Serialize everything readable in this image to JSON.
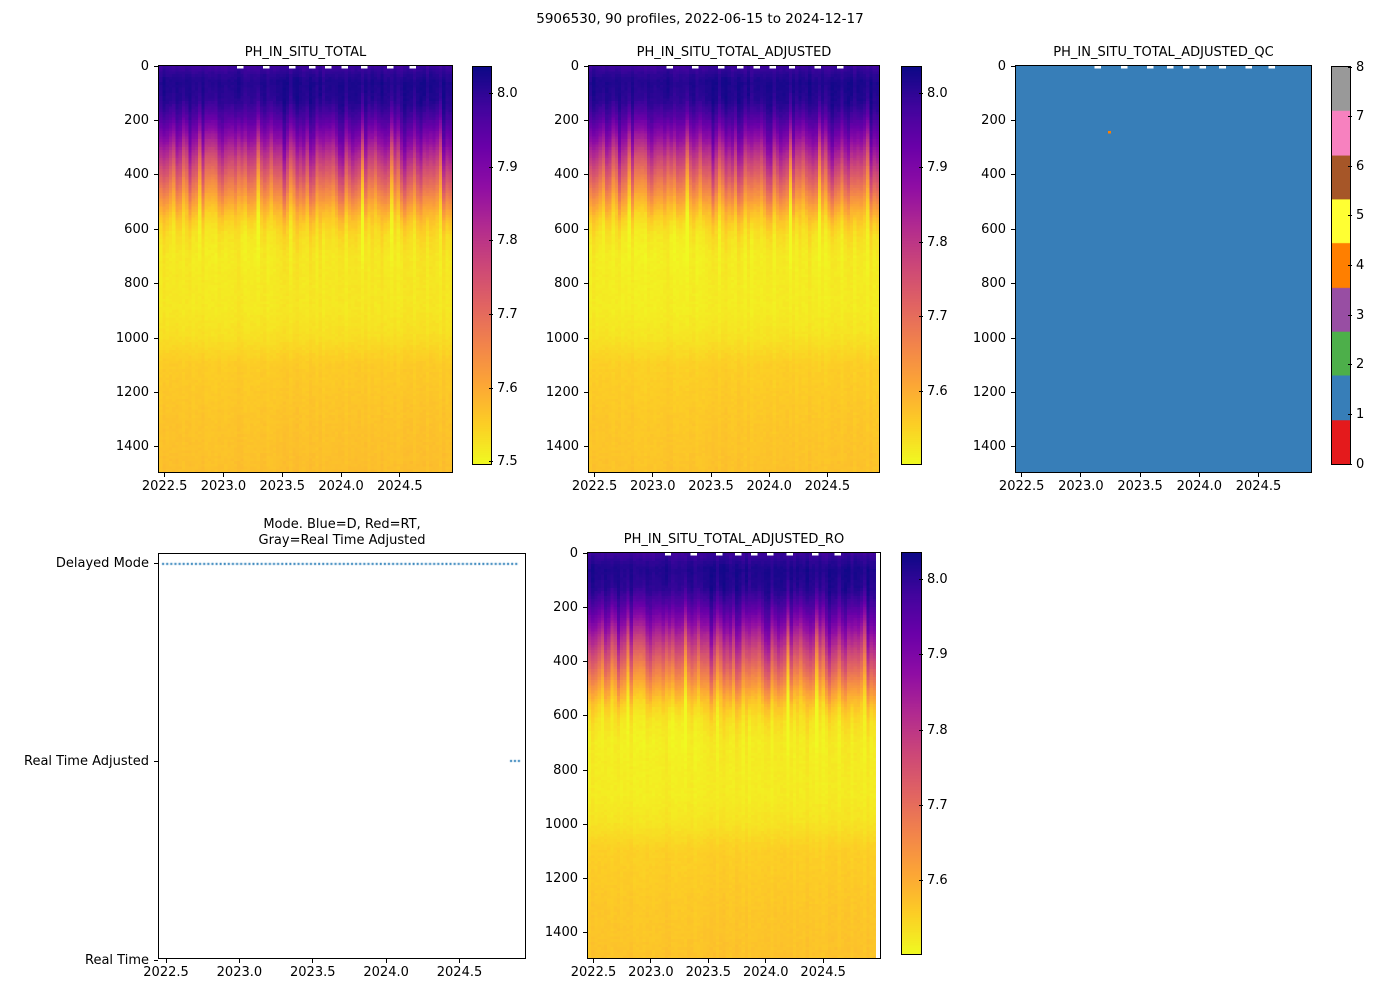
{
  "figure": {
    "title": "5906530, 90 profiles, 2022-06-15 to 2024-12-17"
  },
  "colors": {
    "marker_blue": "#1f77b4",
    "qc_fill_blue": "#377eb8",
    "qc_anomaly_orange": "#ff7f00",
    "axis_black": "#000000",
    "background": "#ffffff",
    "plasma_stops": [
      "#0d0887",
      "#41049d",
      "#6a00a8",
      "#8f0da4",
      "#b12a90",
      "#cc4778",
      "#e16462",
      "#f2844b",
      "#fca636",
      "#fcce25",
      "#f0f921"
    ],
    "qc_palette_set1": [
      "#e41a1c",
      "#377eb8",
      "#4daf4a",
      "#984ea3",
      "#ff7f00",
      "#ffff33",
      "#a65628",
      "#f781bf",
      "#999999"
    ]
  },
  "chart_data": [
    {
      "id": "ph_total",
      "type": "heatmap",
      "title": "PH_IN_SITU_TOTAL",
      "x_range": [
        2022.452,
        2024.96
      ],
      "x_ticks": [
        "2022.5",
        "2023.0",
        "2023.5",
        "2024.0",
        "2024.5"
      ],
      "x_tick_values": [
        2022.5,
        2023.0,
        2023.5,
        2024.0,
        2024.5
      ],
      "depth_range": [
        0,
        1500
      ],
      "y_ticks": [
        "0",
        "200",
        "400",
        "600",
        "800",
        "1000",
        "1200",
        "1400"
      ],
      "y_tick_values": [
        0,
        200,
        400,
        600,
        800,
        1000,
        1200,
        1400
      ],
      "n_profiles": 90,
      "vmin": 7.497,
      "vmax": 8.036,
      "colorbar_ticks": [
        "8.0",
        "7.9",
        "7.8",
        "7.7",
        "7.6",
        "7.5"
      ],
      "colorbar_tick_values": [
        8.0,
        7.9,
        7.8,
        7.7,
        7.6,
        7.5
      ],
      "ph_vs_depth": [
        [
          0,
          7.985
        ],
        [
          30,
          8.005
        ],
        [
          60,
          8.02
        ],
        [
          130,
          8.01
        ],
        [
          180,
          7.975
        ],
        [
          240,
          7.915
        ],
        [
          300,
          7.845
        ],
        [
          360,
          7.775
        ],
        [
          430,
          7.7
        ],
        [
          500,
          7.625
        ],
        [
          560,
          7.565
        ],
        [
          620,
          7.535
        ],
        [
          700,
          7.52
        ],
        [
          900,
          7.52
        ],
        [
          1000,
          7.53
        ],
        [
          1100,
          7.555
        ],
        [
          1300,
          7.565
        ],
        [
          1500,
          7.572
        ]
      ],
      "spike_columns": [
        [
          0.05,
          0.06
        ],
        [
          0.135,
          0.07
        ],
        [
          0.28,
          0.09
        ],
        [
          0.34,
          0.06
        ],
        [
          0.45,
          0.05
        ],
        [
          0.7,
          0.12
        ],
        [
          0.8,
          0.07
        ],
        [
          0.86,
          0.06
        ]
      ],
      "top_gap_fractions": [
        0.27,
        0.36,
        0.45,
        0.52,
        0.57,
        0.63,
        0.7,
        0.79,
        0.87
      ]
    },
    {
      "id": "ph_adjusted",
      "type": "heatmap",
      "title": "PH_IN_SITU_TOTAL_ADJUSTED",
      "x_range": [
        2022.452,
        2024.96
      ],
      "x_ticks": [
        "2022.5",
        "2023.0",
        "2023.5",
        "2024.0",
        "2024.5"
      ],
      "x_tick_values": [
        2022.5,
        2023.0,
        2023.5,
        2024.0,
        2024.5
      ],
      "depth_range": [
        0,
        1500
      ],
      "y_ticks": [
        "0",
        "200",
        "400",
        "600",
        "800",
        "1000",
        "1200",
        "1400"
      ],
      "y_tick_values": [
        0,
        200,
        400,
        600,
        800,
        1000,
        1200,
        1400
      ],
      "n_profiles": 90,
      "vmin": 7.503,
      "vmax": 8.035,
      "colorbar_ticks": [
        "8.0",
        "7.9",
        "7.8",
        "7.7",
        "7.6"
      ],
      "colorbar_tick_values": [
        8.0,
        7.9,
        7.8,
        7.7,
        7.6
      ],
      "ph_vs_depth": [
        [
          0,
          7.985
        ],
        [
          30,
          8.005
        ],
        [
          60,
          8.02
        ],
        [
          130,
          8.01
        ],
        [
          180,
          7.975
        ],
        [
          240,
          7.915
        ],
        [
          300,
          7.845
        ],
        [
          360,
          7.775
        ],
        [
          430,
          7.7
        ],
        [
          500,
          7.625
        ],
        [
          560,
          7.565
        ],
        [
          620,
          7.535
        ],
        [
          700,
          7.52
        ],
        [
          900,
          7.52
        ],
        [
          1000,
          7.53
        ],
        [
          1100,
          7.555
        ],
        [
          1300,
          7.565
        ],
        [
          1500,
          7.572
        ]
      ],
      "spike_columns": [
        [
          0.05,
          0.06
        ],
        [
          0.135,
          0.07
        ],
        [
          0.28,
          0.09
        ],
        [
          0.34,
          0.06
        ],
        [
          0.45,
          0.05
        ],
        [
          0.7,
          0.12
        ],
        [
          0.8,
          0.07
        ],
        [
          0.86,
          0.06
        ]
      ],
      "top_gap_fractions": [
        0.27,
        0.36,
        0.45,
        0.52,
        0.57,
        0.63,
        0.7,
        0.79,
        0.87
      ]
    },
    {
      "id": "ph_adjusted_qc",
      "type": "heatmap-categorical",
      "title": "PH_IN_SITU_TOTAL_ADJUSTED_QC",
      "x_range": [
        2022.452,
        2024.96
      ],
      "x_ticks": [
        "2022.5",
        "2023.0",
        "2023.5",
        "2024.0",
        "2024.5"
      ],
      "x_tick_values": [
        2022.5,
        2023.0,
        2023.5,
        2024.0,
        2024.5
      ],
      "depth_range": [
        0,
        1500
      ],
      "y_ticks": [
        "0",
        "200",
        "400",
        "600",
        "800",
        "1000",
        "1200",
        "1400"
      ],
      "y_tick_values": [
        0,
        200,
        400,
        600,
        800,
        1000,
        1200,
        1400
      ],
      "n_profiles": 90,
      "fill_value": 1,
      "anomalies": [
        {
          "time": 2023.23,
          "depth": 240,
          "value": 4
        }
      ],
      "colorbar_ticks": [
        "0",
        "1",
        "2",
        "3",
        "4",
        "5",
        "6",
        "7",
        "8"
      ],
      "colorbar_tick_values": [
        0,
        1,
        2,
        3,
        4,
        5,
        6,
        7,
        8
      ],
      "top_gap_fractions": [
        0.27,
        0.36,
        0.45,
        0.52,
        0.57,
        0.63,
        0.7,
        0.79,
        0.87
      ]
    },
    {
      "id": "mode",
      "type": "scatter",
      "title_lines": [
        "Mode. Blue=D, Red=RT,",
        "Gray=Real Time Adjusted"
      ],
      "x_range": [
        2022.452,
        2024.96
      ],
      "x_ticks": [
        "2022.5",
        "2023.0",
        "2023.5",
        "2024.0",
        "2024.5"
      ],
      "x_tick_values": [
        2022.5,
        2023.0,
        2023.5,
        2024.0,
        2024.5
      ],
      "ylim": [
        0,
        2.05
      ],
      "y_categories": [
        {
          "label": "Delayed Mode",
          "value": 2
        },
        {
          "label": "Real Time Adjusted",
          "value": 1
        },
        {
          "label": "Real Time",
          "value": 0
        }
      ],
      "delayed_mode_span": [
        2022.48,
        2024.9
      ],
      "delayed_mode_count": 87,
      "rta_points": [
        2024.864,
        2024.891,
        2024.918
      ],
      "marker_color": "#1f77b4"
    },
    {
      "id": "ph_adjusted_ro",
      "type": "heatmap",
      "title": "PH_IN_SITU_TOTAL_ADJUSTED_RO",
      "x_range": [
        2022.452,
        2024.96
      ],
      "x_ticks": [
        "2022.5",
        "2023.0",
        "2023.5",
        "2024.0",
        "2024.5"
      ],
      "x_tick_values": [
        2022.5,
        2023.0,
        2023.5,
        2024.0,
        2024.5
      ],
      "depth_range": [
        0,
        1500
      ],
      "y_ticks": [
        "0",
        "200",
        "400",
        "600",
        "800",
        "1000",
        "1200",
        "1400"
      ],
      "y_tick_values": [
        0,
        200,
        400,
        600,
        800,
        1000,
        1200,
        1400
      ],
      "n_profiles": 90,
      "vmin": 7.503,
      "vmax": 8.035,
      "colorbar_ticks": [
        "8.0",
        "7.9",
        "7.8",
        "7.7",
        "7.6"
      ],
      "colorbar_tick_values": [
        8.0,
        7.9,
        7.8,
        7.7,
        7.6
      ],
      "ph_vs_depth": [
        [
          0,
          7.985
        ],
        [
          30,
          8.005
        ],
        [
          60,
          8.02
        ],
        [
          130,
          8.01
        ],
        [
          180,
          7.975
        ],
        [
          240,
          7.915
        ],
        [
          300,
          7.845
        ],
        [
          360,
          7.775
        ],
        [
          430,
          7.7
        ],
        [
          500,
          7.625
        ],
        [
          560,
          7.565
        ],
        [
          620,
          7.535
        ],
        [
          700,
          7.52
        ],
        [
          900,
          7.52
        ],
        [
          1000,
          7.53
        ],
        [
          1100,
          7.555
        ],
        [
          1300,
          7.565
        ],
        [
          1500,
          7.572
        ]
      ],
      "spike_columns": [
        [
          0.05,
          0.06
        ],
        [
          0.135,
          0.07
        ],
        [
          0.28,
          0.09
        ],
        [
          0.34,
          0.06
        ],
        [
          0.45,
          0.05
        ],
        [
          0.7,
          0.12
        ],
        [
          0.8,
          0.07
        ],
        [
          0.86,
          0.06
        ]
      ],
      "top_gap_fractions": [
        0.27,
        0.36,
        0.45,
        0.52,
        0.57,
        0.63,
        0.7,
        0.79,
        0.87
      ]
    }
  ]
}
